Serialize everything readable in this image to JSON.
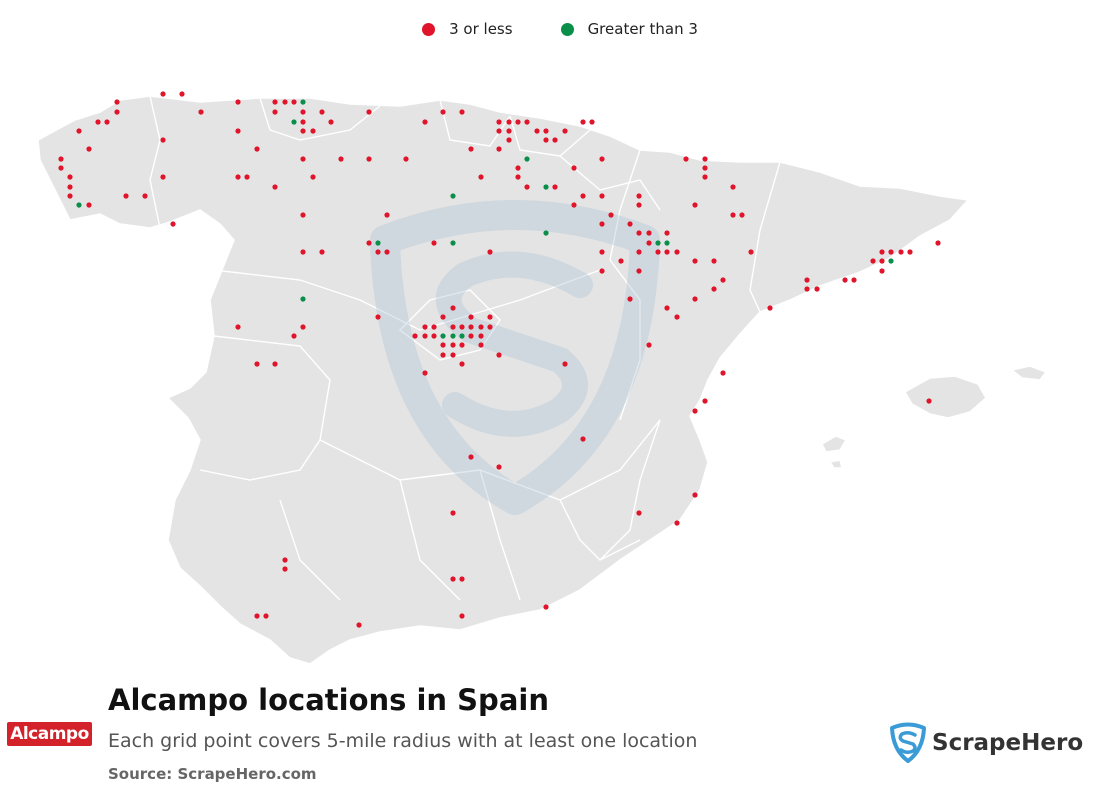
{
  "legend": {
    "items": [
      {
        "label": "3 or less",
        "color": "#e0142a"
      },
      {
        "label": "Greater than 3",
        "color": "#0a8f4a"
      }
    ]
  },
  "footer": {
    "title": "Alcampo locations in Spain",
    "subtitle": "Each grid point covers 5-mile radius with at least one location",
    "source": "Source: ScrapeHero.com"
  },
  "brand": {
    "logo_text": "Alcampo",
    "watermark_text": "ScrapeHero"
  },
  "colors": {
    "land": "#e4e4e4",
    "border": "#ffffff",
    "low": "#e0142a",
    "high": "#0a8f4a",
    "watermark": "#a9c2d4"
  },
  "points_low": [
    [
      117,
      102
    ],
    [
      117,
      112
    ],
    [
      163,
      94
    ],
    [
      182,
      94
    ],
    [
      238,
      102
    ],
    [
      275,
      102
    ],
    [
      285,
      102
    ],
    [
      294,
      102
    ],
    [
      98,
      122
    ],
    [
      107,
      122
    ],
    [
      79,
      131
    ],
    [
      201,
      112
    ],
    [
      163,
      140
    ],
    [
      238,
      131
    ],
    [
      275,
      112
    ],
    [
      303,
      112
    ],
    [
      322,
      112
    ],
    [
      303,
      122
    ],
    [
      331,
      122
    ],
    [
      303,
      131
    ],
    [
      313,
      131
    ],
    [
      369,
      112
    ],
    [
      425,
      122
    ],
    [
      443,
      112
    ],
    [
      462,
      112
    ],
    [
      499,
      122
    ],
    [
      509,
      122
    ],
    [
      518,
      122
    ],
    [
      527,
      122
    ],
    [
      583,
      122
    ],
    [
      592,
      122
    ],
    [
      499,
      131
    ],
    [
      509,
      131
    ],
    [
      537,
      131
    ],
    [
      546,
      131
    ],
    [
      565,
      131
    ],
    [
      509,
      140
    ],
    [
      546,
      140
    ],
    [
      555,
      140
    ],
    [
      89,
      149
    ],
    [
      61,
      159
    ],
    [
      61,
      168
    ],
    [
      70,
      177
    ],
    [
      70,
      187
    ],
    [
      70,
      196
    ],
    [
      89,
      205
    ],
    [
      126,
      196
    ],
    [
      145,
      196
    ],
    [
      163,
      177
    ],
    [
      173,
      224
    ],
    [
      257,
      149
    ],
    [
      238,
      177
    ],
    [
      247,
      177
    ],
    [
      275,
      187
    ],
    [
      303,
      159
    ],
    [
      341,
      159
    ],
    [
      369,
      159
    ],
    [
      406,
      159
    ],
    [
      313,
      177
    ],
    [
      471,
      149
    ],
    [
      499,
      149
    ],
    [
      518,
      168
    ],
    [
      574,
      168
    ],
    [
      602,
      159
    ],
    [
      686,
      159
    ],
    [
      705,
      159
    ],
    [
      705,
      168
    ],
    [
      705,
      177
    ],
    [
      481,
      177
    ],
    [
      518,
      177
    ],
    [
      527,
      187
    ],
    [
      555,
      187
    ],
    [
      733,
      187
    ],
    [
      583,
      196
    ],
    [
      602,
      196
    ],
    [
      639,
      196
    ],
    [
      639,
      205
    ],
    [
      574,
      205
    ],
    [
      611,
      215
    ],
    [
      695,
      205
    ],
    [
      733,
      215
    ],
    [
      742,
      215
    ],
    [
      303,
      215
    ],
    [
      387,
      215
    ],
    [
      602,
      224
    ],
    [
      630,
      224
    ],
    [
      639,
      233
    ],
    [
      649,
      233
    ],
    [
      667,
      233
    ],
    [
      369,
      243
    ],
    [
      434,
      243
    ],
    [
      649,
      243
    ],
    [
      378,
      252
    ],
    [
      387,
      252
    ],
    [
      303,
      252
    ],
    [
      322,
      252
    ],
    [
      490,
      252
    ],
    [
      602,
      252
    ],
    [
      639,
      252
    ],
    [
      658,
      252
    ],
    [
      667,
      252
    ],
    [
      677,
      252
    ],
    [
      751,
      252
    ],
    [
      621,
      261
    ],
    [
      695,
      261
    ],
    [
      714,
      261
    ],
    [
      602,
      271
    ],
    [
      639,
      271
    ],
    [
      723,
      280
    ],
    [
      714,
      289
    ],
    [
      695,
      299
    ],
    [
      630,
      299
    ],
    [
      667,
      308
    ],
    [
      677,
      317
    ],
    [
      807,
      280
    ],
    [
      807,
      289
    ],
    [
      817,
      289
    ],
    [
      845,
      280
    ],
    [
      854,
      280
    ],
    [
      873,
      261
    ],
    [
      882,
      261
    ],
    [
      882,
      252
    ],
    [
      891,
      252
    ],
    [
      901,
      252
    ],
    [
      910,
      252
    ],
    [
      938,
      243
    ],
    [
      882,
      271
    ],
    [
      770,
      308
    ],
    [
      238,
      327
    ],
    [
      303,
      327
    ],
    [
      294,
      336
    ],
    [
      378,
      317
    ],
    [
      453,
      308
    ],
    [
      443,
      317
    ],
    [
      471,
      317
    ],
    [
      490,
      317
    ],
    [
      425,
      327
    ],
    [
      434,
      327
    ],
    [
      453,
      327
    ],
    [
      462,
      327
    ],
    [
      471,
      327
    ],
    [
      481,
      327
    ],
    [
      490,
      327
    ],
    [
      415,
      336
    ],
    [
      425,
      336
    ],
    [
      434,
      336
    ],
    [
      471,
      336
    ],
    [
      481,
      336
    ],
    [
      443,
      345
    ],
    [
      453,
      345
    ],
    [
      462,
      345
    ],
    [
      481,
      345
    ],
    [
      443,
      355
    ],
    [
      453,
      355
    ],
    [
      499,
      355
    ],
    [
      462,
      364
    ],
    [
      425,
      373
    ],
    [
      565,
      364
    ],
    [
      649,
      345
    ],
    [
      723,
      373
    ],
    [
      705,
      401
    ],
    [
      695,
      411
    ],
    [
      257,
      364
    ],
    [
      275,
      364
    ],
    [
      583,
      439
    ],
    [
      471,
      457
    ],
    [
      499,
      467
    ],
    [
      695,
      495
    ],
    [
      453,
      513
    ],
    [
      639,
      513
    ],
    [
      677,
      523
    ],
    [
      285,
      560
    ],
    [
      285,
      569
    ],
    [
      453,
      579
    ],
    [
      462,
      579
    ],
    [
      546,
      607
    ],
    [
      257,
      616
    ],
    [
      266,
      616
    ],
    [
      462,
      616
    ],
    [
      359,
      625
    ],
    [
      929,
      401
    ]
  ],
  "points_high": [
    [
      303,
      102
    ],
    [
      294,
      122
    ],
    [
      527,
      159
    ],
    [
      79,
      205
    ],
    [
      453,
      196
    ],
    [
      546,
      187
    ],
    [
      546,
      233
    ],
    [
      378,
      243
    ],
    [
      453,
      243
    ],
    [
      658,
      243
    ],
    [
      667,
      243
    ],
    [
      303,
      299
    ],
    [
      443,
      336
    ],
    [
      453,
      336
    ],
    [
      462,
      336
    ],
    [
      891,
      261
    ]
  ]
}
